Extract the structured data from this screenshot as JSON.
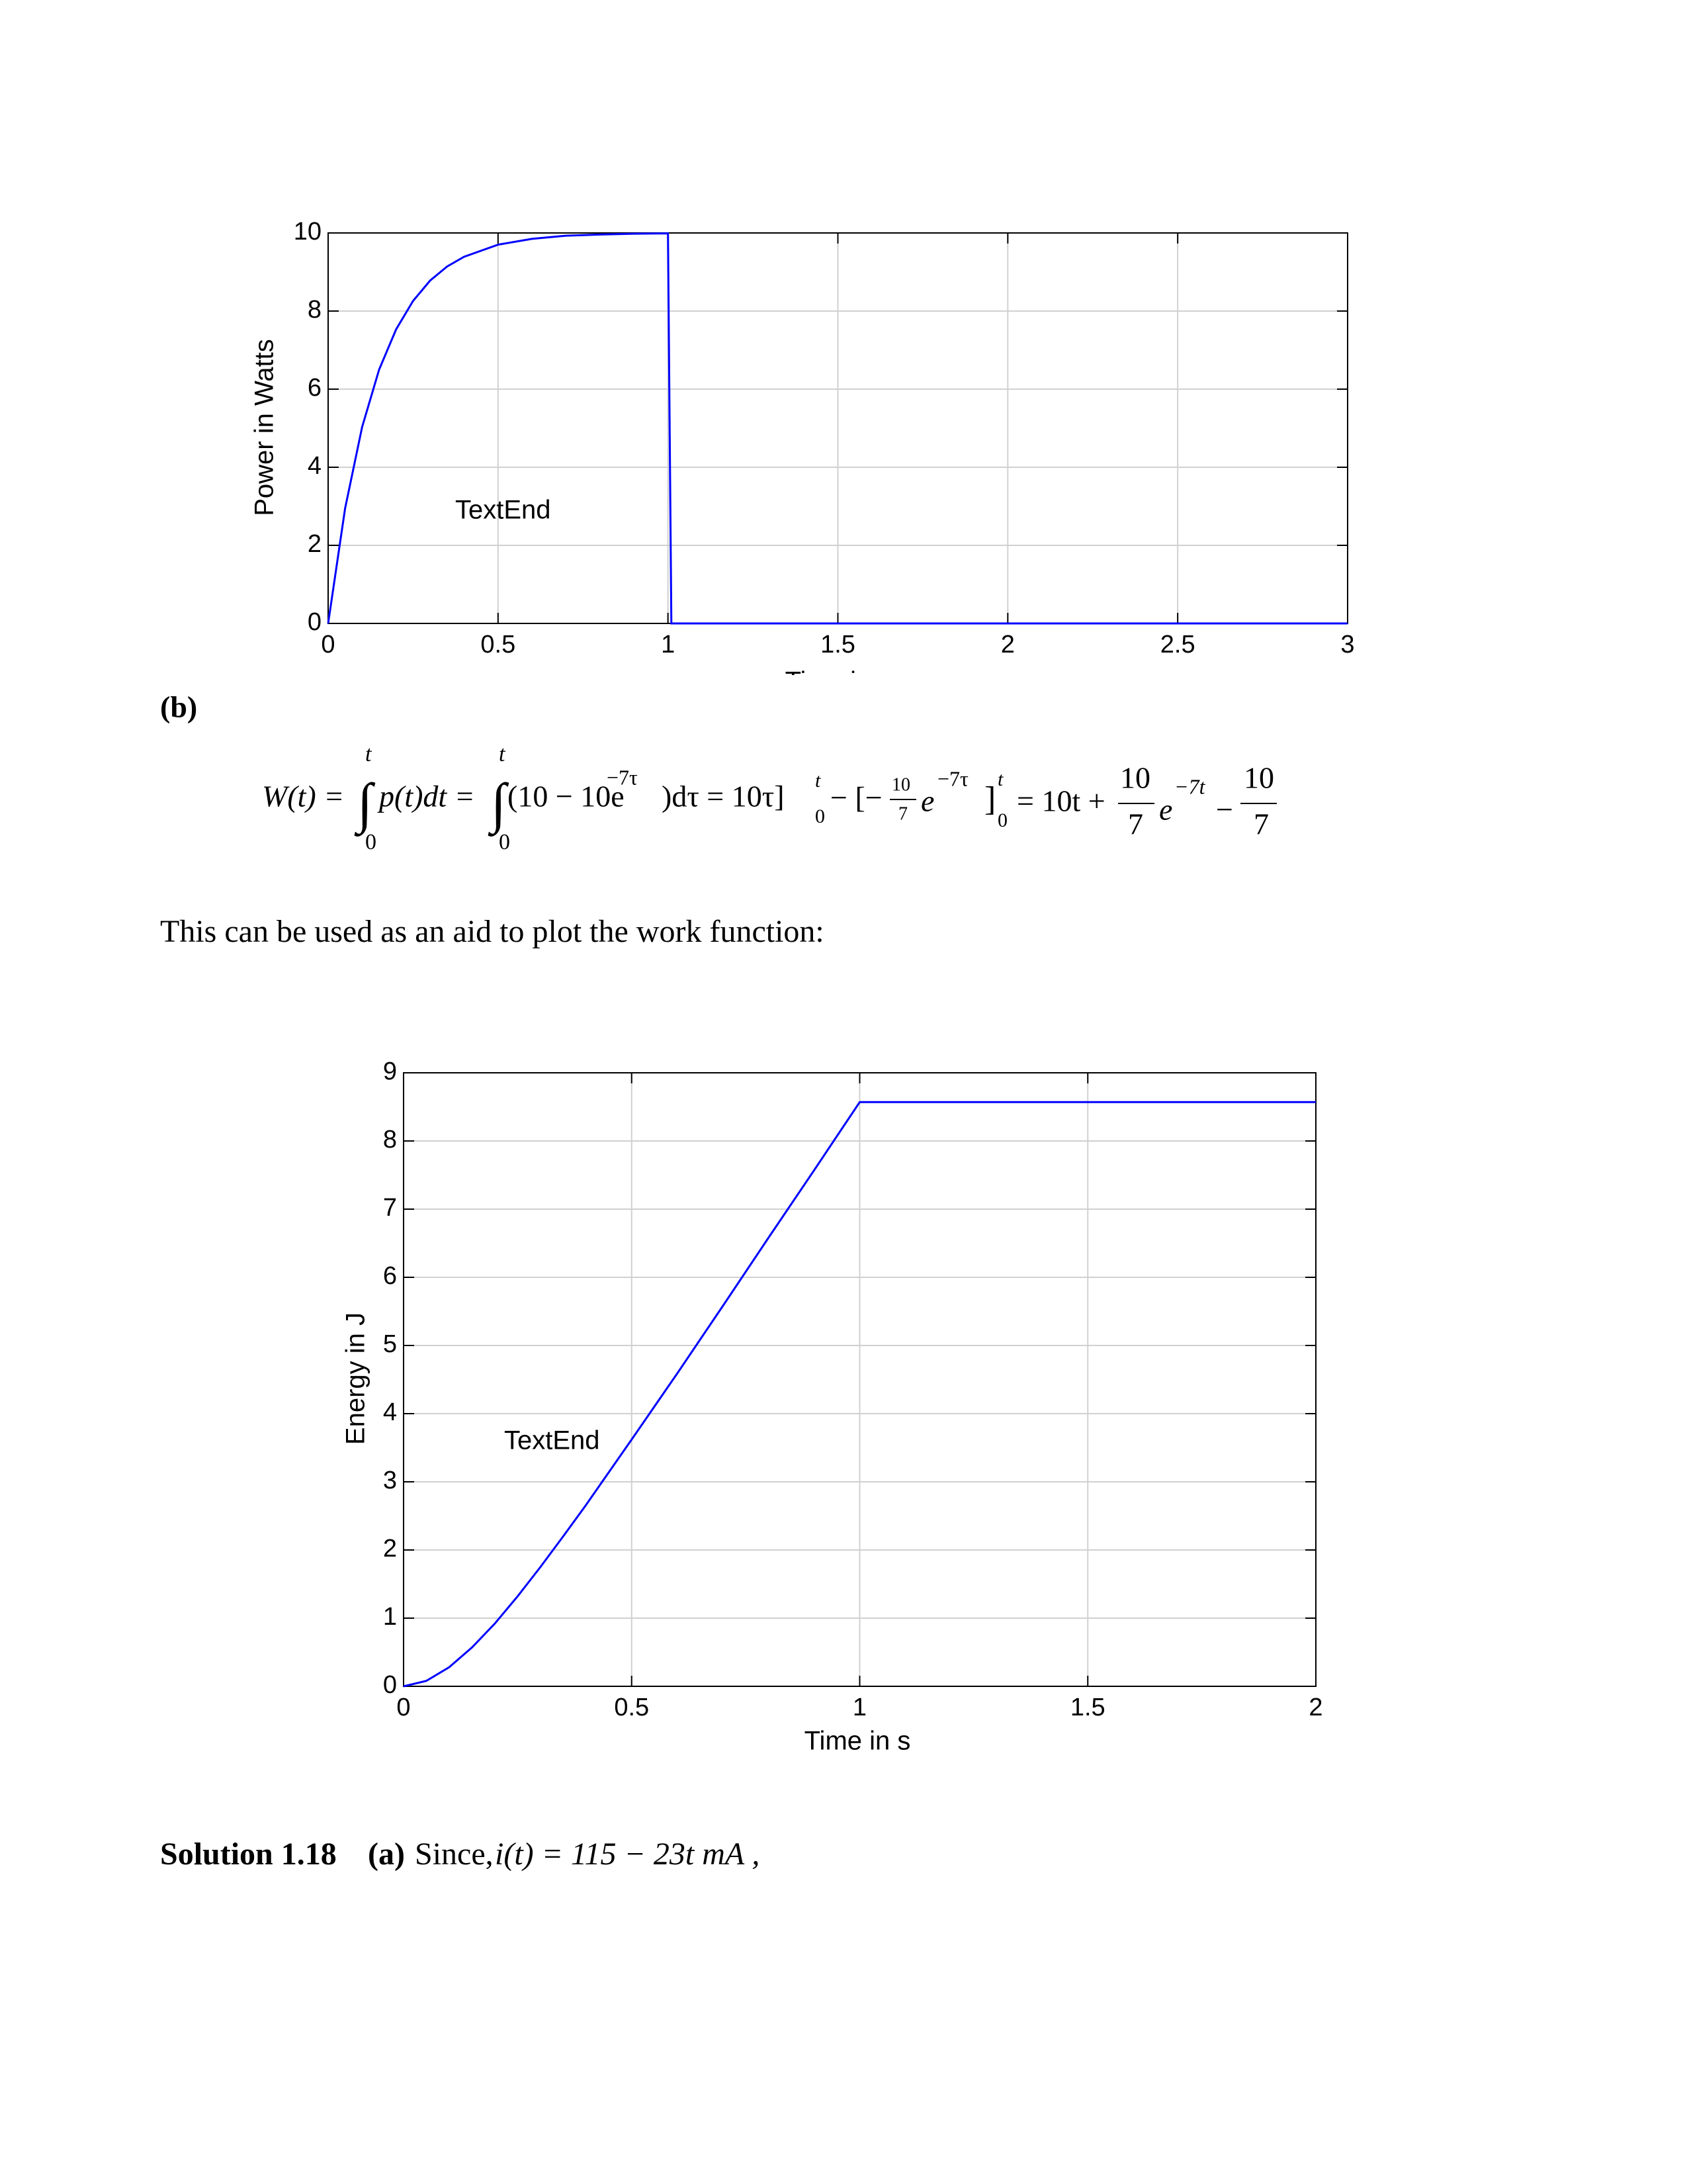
{
  "section": "(b)",
  "equation": [
    "W(t) =",
    "∫",
    "t",
    "0",
    "p(t)dt =",
    "∫",
    "t",
    "0",
    "(10 − 10e",
    "−7τ",
    ")dτ = 10τ]",
    "t",
    "0",
    "− [−",
    "10",
    "7",
    "e",
    "−7τ",
    "]",
    "t",
    "0",
    "= 10t +",
    "10",
    "7",
    "e",
    "−7t",
    "−",
    "10",
    "7"
  ],
  "paragraph": "This can be used as an aid to plot the work function:",
  "solution": {
    "label": "Solution 1.18",
    "part": "(a)",
    "text": "Since,",
    "formula": "i(t) = 115 − 23t  mA ,"
  },
  "chart_data": [
    {
      "type": "line",
      "xlabel": "Time in s",
      "ylabel": "Power in Watts",
      "annotation": "TextEnd",
      "x": [
        0,
        0.05,
        0.1,
        0.15,
        0.2,
        0.25,
        0.3,
        0.35,
        0.4,
        0.5,
        0.6,
        0.7,
        0.8,
        0.9,
        1.0,
        1.01,
        3
      ],
      "series": [
        {
          "color": "#0000ff",
          "values": [
            0,
            2.95,
            5.03,
            6.5,
            7.53,
            8.26,
            8.78,
            9.14,
            9.39,
            9.7,
            9.85,
            9.93,
            9.96,
            9.98,
            9.99,
            0,
            0
          ]
        }
      ],
      "xlim": [
        0,
        3
      ],
      "ylim": [
        0,
        10
      ],
      "xticks": [
        0,
        0.5,
        1,
        1.5,
        2,
        2.5,
        3
      ],
      "yticks": [
        0,
        2,
        4,
        6,
        8,
        10
      ],
      "grid": true
    },
    {
      "type": "line",
      "xlabel": "Time in s",
      "ylabel": "Energy in J",
      "annotation": "TextEnd",
      "x": [
        0,
        0.05,
        0.1,
        0.15,
        0.2,
        0.25,
        0.3,
        0.35,
        0.4,
        0.5,
        0.6,
        0.7,
        0.8,
        0.9,
        1.0,
        2
      ],
      "series": [
        {
          "color": "#0000ff",
          "values": [
            0,
            0.08,
            0.28,
            0.57,
            0.92,
            1.32,
            1.75,
            2.2,
            2.66,
            3.62,
            4.59,
            5.58,
            6.58,
            7.57,
            8.57,
            8.57
          ]
        }
      ],
      "xlim": [
        0,
        2
      ],
      "ylim": [
        0,
        9
      ],
      "xticks": [
        0,
        0.5,
        1,
        1.5,
        2
      ],
      "yticks": [
        0,
        1,
        2,
        3,
        4,
        5,
        6,
        7,
        8,
        9
      ],
      "grid": true
    }
  ]
}
